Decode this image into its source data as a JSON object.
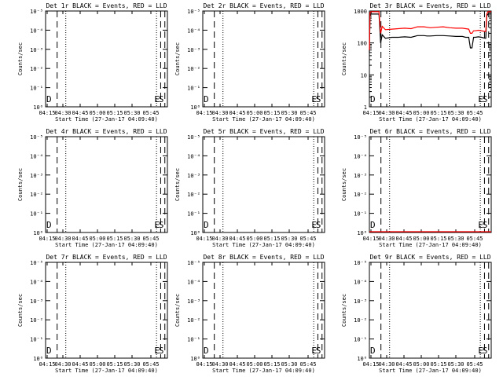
{
  "chart_data": {
    "type": "line",
    "x_ticks": [
      "04:15",
      "04:30",
      "04:45",
      "05:00",
      "05:15",
      "05:30",
      "05:45"
    ],
    "x_range_minutes_after_04_00": [
      11,
      49
    ],
    "xlabel": "Start Time (27-Jan-17 04:09:40)",
    "ylabel": "Counts/sec",
    "y_scale": "log",
    "ylim": [
      1,
      1000
    ],
    "log_tick_labels_empty_panels": [
      "10⁰",
      "10⁻¹",
      "10⁻²",
      "10⁻³",
      "10⁻⁴",
      "10⁻⁵"
    ],
    "log_tick_labels_active_panel": [
      "1",
      "10",
      "100",
      "1000"
    ],
    "vline_markers": {
      "dotted_minutes": [
        17.3,
        45.6
      ],
      "dashed_minutes": [
        14.6,
        46.9,
        48.2
      ],
      "labels": [
        "D",
        "E",
        "S"
      ]
    },
    "series_legend": {
      "black": "Events",
      "red": "LLD"
    },
    "panels": [
      {
        "title": "Det 1r BLACK = Events, RED = LLD",
        "active": false
      },
      {
        "title": "Det 2r BLACK = Events, RED = LLD",
        "active": false
      },
      {
        "title": "Det 3r BLACK = Events, RED = LLD",
        "active": true,
        "series": [
          {
            "color": "#000000",
            "x": [
              11,
              11.2,
              11.5,
              14,
              14.5,
              15,
              16,
              18,
              20,
              22,
              24,
              26,
              28,
              29,
              30,
              32,
              34,
              36,
              38,
              40,
              41,
              42,
              42.5,
              43,
              43.5,
              44,
              45,
              46,
              47,
              47.3,
              47.6,
              48,
              48.5,
              49
            ],
            "y": [
              50,
              700,
              800,
              800,
              100,
              180,
              140,
              150,
              150,
              155,
              150,
              170,
              170,
              165,
              165,
              170,
              170,
              165,
              160,
              160,
              150,
              150,
              70,
              70,
              150,
              150,
              155,
              150,
              140,
              140,
              700,
              800,
              800,
              800
            ]
          },
          {
            "color": "#ff0000",
            "x": [
              11,
              11.2,
              11.5,
              14,
              14.5,
              15,
              16,
              18,
              20,
              22,
              24,
              26,
              28,
              29,
              30,
              32,
              34,
              36,
              38,
              40,
              41,
              42,
              42.5,
              43,
              43.5,
              44,
              45,
              46,
              47,
              47.3,
              47.6,
              48,
              48.5,
              49
            ],
            "y": [
              60,
              900,
              950,
              950,
              200,
              330,
              260,
              270,
              280,
              290,
              280,
              320,
              320,
              310,
              300,
              310,
              320,
              300,
              290,
              290,
              280,
              270,
              200,
              200,
              240,
              240,
              250,
              240,
              230,
              230,
              800,
              950,
              950,
              950
            ]
          }
        ]
      },
      {
        "title": "Det 4r BLACK = Events, RED = LLD",
        "active": false
      },
      {
        "title": "Det 5r BLACK = Events, RED = LLD",
        "active": false
      },
      {
        "title": "Det 6r BLACK = Events, RED = LLD",
        "active": false,
        "flat_red_line_at_bottom": true
      },
      {
        "title": "Det 7r BLACK = Events, RED = LLD",
        "active": false
      },
      {
        "title": "Det 8r BLACK = Events, RED = LLD",
        "active": false
      },
      {
        "title": "Det 9r BLACK = Events, RED = LLD",
        "active": false
      }
    ]
  }
}
